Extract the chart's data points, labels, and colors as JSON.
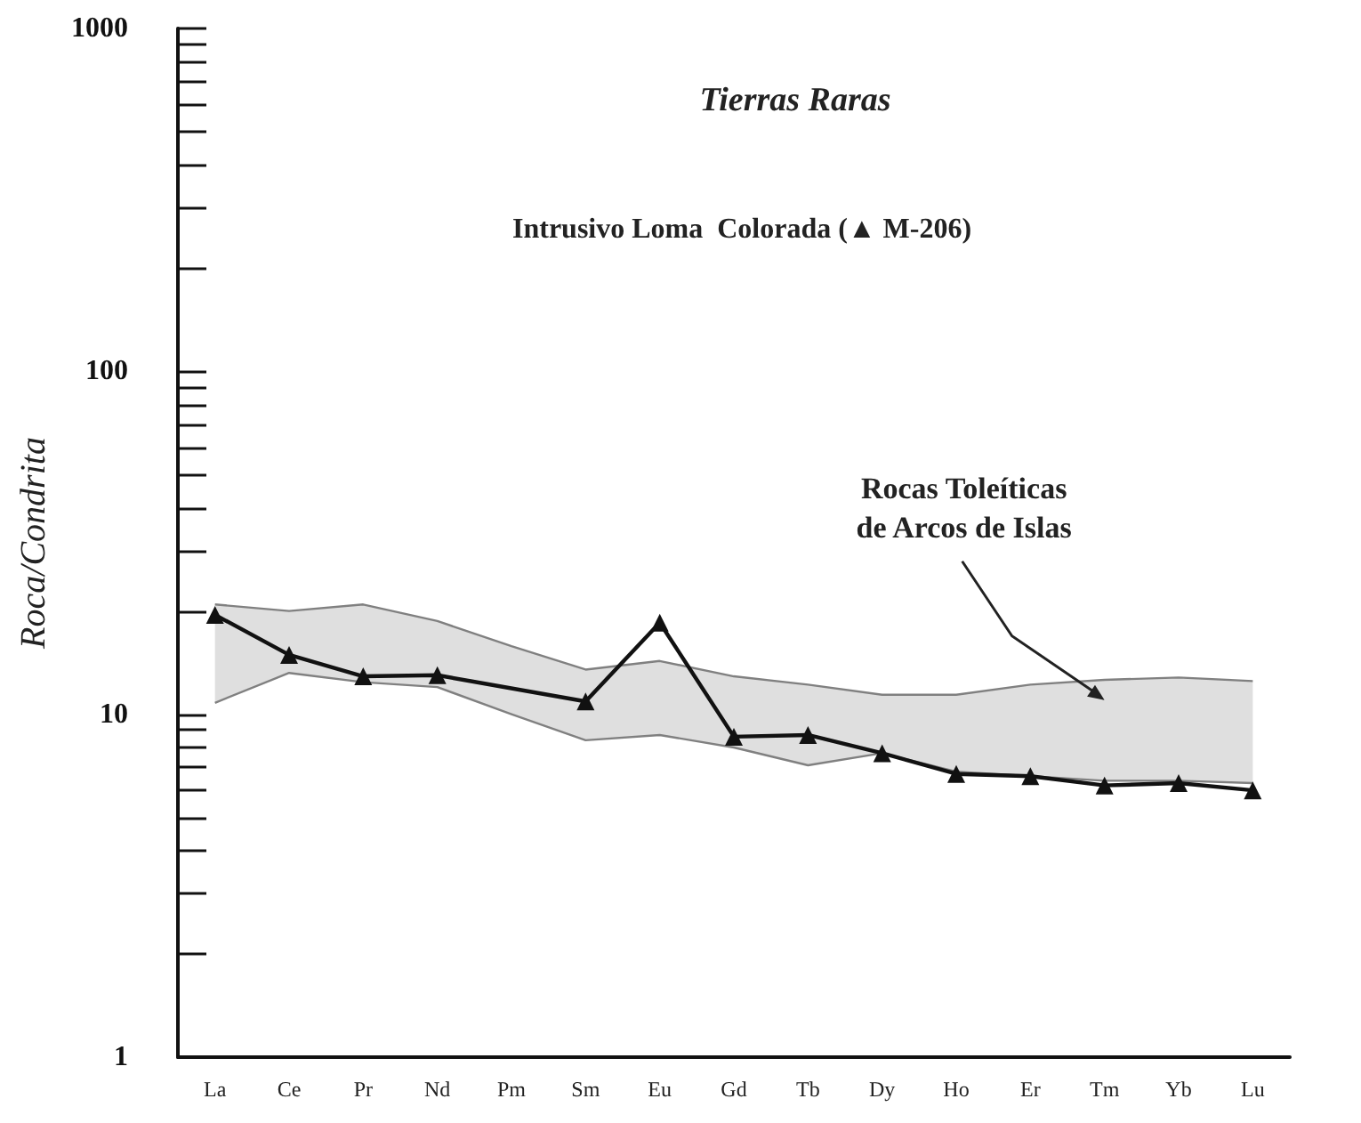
{
  "chart_data": {
    "type": "line",
    "title": "Tierras Raras",
    "subtitle": "Intrusivo Loma  Colorada (▲ M-206)",
    "ylabel": "Roca/Condrita",
    "categories": [
      "La",
      "Ce",
      "Pr",
      "Nd",
      "Pm",
      "Sm",
      "Eu",
      "Gd",
      "Tb",
      "Dy",
      "Ho",
      "Er",
      "Tm",
      "Yb",
      "Lu"
    ],
    "series": [
      {
        "color": "#111111",
        "marker": "triangle",
        "values": [
          19.5,
          14.9,
          12.9,
          13.0,
          null,
          10.9,
          18.5,
          8.6,
          8.7,
          7.7,
          6.7,
          6.6,
          6.2,
          6.3,
          6.0
        ]
      },
      {
        "type": "line",
        "color": "#808080",
        "marker": "none",
        "values": [
          10.8,
          13.2,
          12.4,
          12.0,
          10.0,
          8.4,
          8.7,
          8.0,
          7.1,
          7.7,
          6.8,
          6.6,
          6.4,
          6.4,
          6.3
        ]
      },
      {
        "type": "area",
        "color": "#808080",
        "marker": "none",
        "values": [
          20.9,
          20.0,
          20.9,
          18.7,
          15.8,
          13.5,
          14.3,
          12.9,
          12.2,
          11.4,
          11.4,
          12.2,
          12.6,
          12.8,
          12.5
        ]
      }
    ],
    "annotations": [
      "Rocas Toleíticas\nde Arcos de Islas"
    ],
    "log": true,
    "ylim": [
      1,
      1000
    ],
    "yticks": [
      1,
      {
        "value": 2,
        "label": null
      },
      {
        "value": 3,
        "label": null
      },
      {
        "value": 4,
        "label": null
      },
      {
        "value": 5,
        "label": null
      },
      {
        "value": 6,
        "label": null
      },
      {
        "value": 7,
        "label": null
      },
      {
        "value": 8,
        "label": null
      },
      {
        "value": 9,
        "label": null
      },
      10,
      {
        "value": 20,
        "label": null
      },
      {
        "value": 30,
        "label": null
      },
      {
        "value": 40,
        "label": null
      },
      {
        "value": 50,
        "label": null
      },
      {
        "value": 60,
        "label": null
      },
      {
        "value": 70,
        "label": null
      },
      {
        "value": 80,
        "label": null
      },
      {
        "value": 90,
        "label": null
      },
      100,
      {
        "value": 200,
        "label": null
      },
      {
        "value": 300,
        "label": null
      },
      {
        "value": 400,
        "label": null
      },
      {
        "value": 500,
        "label": null
      },
      {
        "value": 600,
        "label": null
      },
      {
        "value": 700,
        "label": null
      },
      {
        "value": 800,
        "label": null
      },
      {
        "value": 900,
        "label": null
      },
      1000
    ],
    "grid": false
  }
}
